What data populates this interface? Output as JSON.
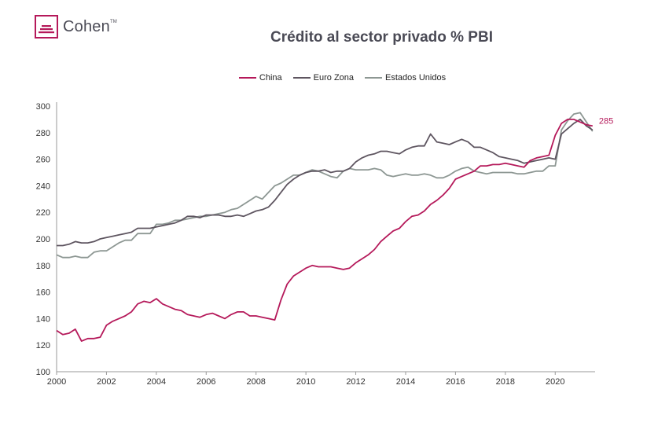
{
  "logo": {
    "text": "Cohen",
    "mark": "TM"
  },
  "colors": {
    "china": "#b5195a",
    "euro": "#5e5560",
    "usa": "#8d9793",
    "axis": "#999999",
    "text": "#4a4a55"
  },
  "chart_data": {
    "type": "line",
    "title": "Crédito al sector privado % PBI",
    "xlabel": "",
    "ylabel": "",
    "xlim": [
      2000,
      2021.6
    ],
    "ylim": [
      100,
      300
    ],
    "xticks": [
      "2000",
      "2002",
      "2004",
      "2006",
      "2008",
      "2010",
      "2012",
      "2014",
      "2016",
      "2018",
      "2020"
    ],
    "yticks": [
      "100",
      "120",
      "140",
      "160",
      "180",
      "200",
      "220",
      "240",
      "260",
      "280",
      "300"
    ],
    "grid": false,
    "legend_position": "top-center",
    "end_label": {
      "series": "China",
      "text": "285"
    },
    "series": [
      {
        "name": "China",
        "color": "#b5195a",
        "points": [
          [
            2000.0,
            131
          ],
          [
            2000.25,
            128
          ],
          [
            2000.5,
            129
          ],
          [
            2000.75,
            132
          ],
          [
            2001.0,
            123
          ],
          [
            2001.25,
            125
          ],
          [
            2001.5,
            125
          ],
          [
            2001.75,
            126
          ],
          [
            2002.0,
            135
          ],
          [
            2002.25,
            138
          ],
          [
            2002.5,
            140
          ],
          [
            2002.75,
            142
          ],
          [
            2003.0,
            145
          ],
          [
            2003.25,
            151
          ],
          [
            2003.5,
            153
          ],
          [
            2003.75,
            152
          ],
          [
            2004.0,
            155
          ],
          [
            2004.25,
            151
          ],
          [
            2004.5,
            149
          ],
          [
            2004.75,
            147
          ],
          [
            2005.0,
            146
          ],
          [
            2005.25,
            143
          ],
          [
            2005.5,
            142
          ],
          [
            2005.75,
            141
          ],
          [
            2006.0,
            143
          ],
          [
            2006.25,
            144
          ],
          [
            2006.5,
            142
          ],
          [
            2006.75,
            140
          ],
          [
            2007.0,
            143
          ],
          [
            2007.25,
            145
          ],
          [
            2007.5,
            145
          ],
          [
            2007.75,
            142
          ],
          [
            2008.0,
            142
          ],
          [
            2008.25,
            141
          ],
          [
            2008.5,
            140
          ],
          [
            2008.75,
            139
          ],
          [
            2009.0,
            154
          ],
          [
            2009.25,
            166
          ],
          [
            2009.5,
            172
          ],
          [
            2009.75,
            175
          ],
          [
            2010.0,
            178
          ],
          [
            2010.25,
            180
          ],
          [
            2010.5,
            179
          ],
          [
            2010.75,
            179
          ],
          [
            2011.0,
            179
          ],
          [
            2011.25,
            178
          ],
          [
            2011.5,
            177
          ],
          [
            2011.75,
            178
          ],
          [
            2012.0,
            182
          ],
          [
            2012.25,
            185
          ],
          [
            2012.5,
            188
          ],
          [
            2012.75,
            192
          ],
          [
            2013.0,
            198
          ],
          [
            2013.25,
            202
          ],
          [
            2013.5,
            206
          ],
          [
            2013.75,
            208
          ],
          [
            2014.0,
            213
          ],
          [
            2014.25,
            217
          ],
          [
            2014.5,
            218
          ],
          [
            2014.75,
            221
          ],
          [
            2015.0,
            226
          ],
          [
            2015.25,
            229
          ],
          [
            2015.5,
            233
          ],
          [
            2015.75,
            238
          ],
          [
            2016.0,
            245
          ],
          [
            2016.25,
            247
          ],
          [
            2016.5,
            249
          ],
          [
            2016.75,
            251
          ],
          [
            2017.0,
            255
          ],
          [
            2017.25,
            255
          ],
          [
            2017.5,
            256
          ],
          [
            2017.75,
            256
          ],
          [
            2018.0,
            257
          ],
          [
            2018.25,
            256
          ],
          [
            2018.5,
            255
          ],
          [
            2018.75,
            254
          ],
          [
            2019.0,
            259
          ],
          [
            2019.25,
            261
          ],
          [
            2019.5,
            262
          ],
          [
            2019.75,
            263
          ],
          [
            2020.0,
            278
          ],
          [
            2020.25,
            287
          ],
          [
            2020.5,
            290
          ],
          [
            2020.75,
            290
          ],
          [
            2021.0,
            288
          ],
          [
            2021.25,
            286
          ],
          [
            2021.5,
            285
          ]
        ]
      },
      {
        "name": "Euro Zona",
        "color": "#5e5560",
        "points": [
          [
            2000.0,
            195
          ],
          [
            2000.25,
            195
          ],
          [
            2000.5,
            196
          ],
          [
            2000.75,
            198
          ],
          [
            2001.0,
            197
          ],
          [
            2001.25,
            197
          ],
          [
            2001.5,
            198
          ],
          [
            2001.75,
            200
          ],
          [
            2002.0,
            201
          ],
          [
            2002.25,
            202
          ],
          [
            2002.5,
            203
          ],
          [
            2002.75,
            204
          ],
          [
            2003.0,
            205
          ],
          [
            2003.25,
            208
          ],
          [
            2003.5,
            208
          ],
          [
            2003.75,
            208
          ],
          [
            2004.0,
            209
          ],
          [
            2004.25,
            210
          ],
          [
            2004.5,
            211
          ],
          [
            2004.75,
            212
          ],
          [
            2005.0,
            214
          ],
          [
            2005.25,
            217
          ],
          [
            2005.5,
            217
          ],
          [
            2005.75,
            216
          ],
          [
            2006.0,
            218
          ],
          [
            2006.25,
            218
          ],
          [
            2006.5,
            218
          ],
          [
            2006.75,
            217
          ],
          [
            2007.0,
            217
          ],
          [
            2007.25,
            218
          ],
          [
            2007.5,
            217
          ],
          [
            2007.75,
            219
          ],
          [
            2008.0,
            221
          ],
          [
            2008.25,
            222
          ],
          [
            2008.5,
            224
          ],
          [
            2008.75,
            229
          ],
          [
            2009.0,
            235
          ],
          [
            2009.25,
            241
          ],
          [
            2009.5,
            245
          ],
          [
            2009.75,
            248
          ],
          [
            2010.0,
            250
          ],
          [
            2010.25,
            251
          ],
          [
            2010.5,
            251
          ],
          [
            2010.75,
            252
          ],
          [
            2011.0,
            250
          ],
          [
            2011.25,
            251
          ],
          [
            2011.5,
            251
          ],
          [
            2011.75,
            253
          ],
          [
            2012.0,
            258
          ],
          [
            2012.25,
            261
          ],
          [
            2012.5,
            263
          ],
          [
            2012.75,
            264
          ],
          [
            2013.0,
            266
          ],
          [
            2013.25,
            266
          ],
          [
            2013.5,
            265
          ],
          [
            2013.75,
            264
          ],
          [
            2014.0,
            267
          ],
          [
            2014.25,
            269
          ],
          [
            2014.5,
            270
          ],
          [
            2014.75,
            270
          ],
          [
            2015.0,
            279
          ],
          [
            2015.25,
            273
          ],
          [
            2015.5,
            272
          ],
          [
            2015.75,
            271
          ],
          [
            2016.0,
            273
          ],
          [
            2016.25,
            275
          ],
          [
            2016.5,
            273
          ],
          [
            2016.75,
            269
          ],
          [
            2017.0,
            269
          ],
          [
            2017.25,
            267
          ],
          [
            2017.5,
            265
          ],
          [
            2017.75,
            262
          ],
          [
            2018.0,
            261
          ],
          [
            2018.25,
            260
          ],
          [
            2018.5,
            259
          ],
          [
            2018.75,
            257
          ],
          [
            2019.0,
            258
          ],
          [
            2019.25,
            259
          ],
          [
            2019.5,
            260
          ],
          [
            2019.75,
            261
          ],
          [
            2020.0,
            260
          ],
          [
            2020.25,
            279
          ],
          [
            2020.5,
            283
          ],
          [
            2020.75,
            287
          ],
          [
            2021.0,
            290
          ],
          [
            2021.25,
            285
          ],
          [
            2021.5,
            282
          ]
        ]
      },
      {
        "name": "Estados Unidos",
        "color": "#8d9793",
        "points": [
          [
            2000.0,
            188
          ],
          [
            2000.25,
            186
          ],
          [
            2000.5,
            186
          ],
          [
            2000.75,
            187
          ],
          [
            2001.0,
            186
          ],
          [
            2001.25,
            186
          ],
          [
            2001.5,
            190
          ],
          [
            2001.75,
            191
          ],
          [
            2002.0,
            191
          ],
          [
            2002.25,
            194
          ],
          [
            2002.5,
            197
          ],
          [
            2002.75,
            199
          ],
          [
            2003.0,
            199
          ],
          [
            2003.25,
            204
          ],
          [
            2003.5,
            204
          ],
          [
            2003.75,
            204
          ],
          [
            2004.0,
            211
          ],
          [
            2004.25,
            211
          ],
          [
            2004.5,
            212
          ],
          [
            2004.75,
            214
          ],
          [
            2005.0,
            214
          ],
          [
            2005.25,
            215
          ],
          [
            2005.5,
            216
          ],
          [
            2005.75,
            217
          ],
          [
            2006.0,
            217
          ],
          [
            2006.25,
            218
          ],
          [
            2006.5,
            219
          ],
          [
            2006.75,
            220
          ],
          [
            2007.0,
            222
          ],
          [
            2007.25,
            223
          ],
          [
            2007.5,
            226
          ],
          [
            2007.75,
            229
          ],
          [
            2008.0,
            232
          ],
          [
            2008.25,
            230
          ],
          [
            2008.5,
            235
          ],
          [
            2008.75,
            240
          ],
          [
            2009.0,
            242
          ],
          [
            2009.25,
            245
          ],
          [
            2009.5,
            248
          ],
          [
            2009.75,
            248
          ],
          [
            2010.0,
            250
          ],
          [
            2010.25,
            252
          ],
          [
            2010.5,
            251
          ],
          [
            2010.75,
            249
          ],
          [
            2011.0,
            247
          ],
          [
            2011.25,
            246
          ],
          [
            2011.5,
            251
          ],
          [
            2011.75,
            253
          ],
          [
            2012.0,
            252
          ],
          [
            2012.25,
            252
          ],
          [
            2012.5,
            252
          ],
          [
            2012.75,
            253
          ],
          [
            2013.0,
            252
          ],
          [
            2013.25,
            248
          ],
          [
            2013.5,
            247
          ],
          [
            2013.75,
            248
          ],
          [
            2014.0,
            249
          ],
          [
            2014.25,
            248
          ],
          [
            2014.5,
            248
          ],
          [
            2014.75,
            249
          ],
          [
            2015.0,
            248
          ],
          [
            2015.25,
            246
          ],
          [
            2015.5,
            246
          ],
          [
            2015.75,
            248
          ],
          [
            2016.0,
            251
          ],
          [
            2016.25,
            253
          ],
          [
            2016.5,
            254
          ],
          [
            2016.75,
            251
          ],
          [
            2017.0,
            250
          ],
          [
            2017.25,
            249
          ],
          [
            2017.5,
            250
          ],
          [
            2017.75,
            250
          ],
          [
            2018.0,
            250
          ],
          [
            2018.25,
            250
          ],
          [
            2018.5,
            249
          ],
          [
            2018.75,
            249
          ],
          [
            2019.0,
            250
          ],
          [
            2019.25,
            251
          ],
          [
            2019.5,
            251
          ],
          [
            2019.75,
            255
          ],
          [
            2020.0,
            255
          ],
          [
            2020.25,
            282
          ],
          [
            2020.5,
            289
          ],
          [
            2020.75,
            294
          ],
          [
            2021.0,
            295
          ],
          [
            2021.25,
            288
          ],
          [
            2021.5,
            281
          ]
        ]
      }
    ]
  }
}
